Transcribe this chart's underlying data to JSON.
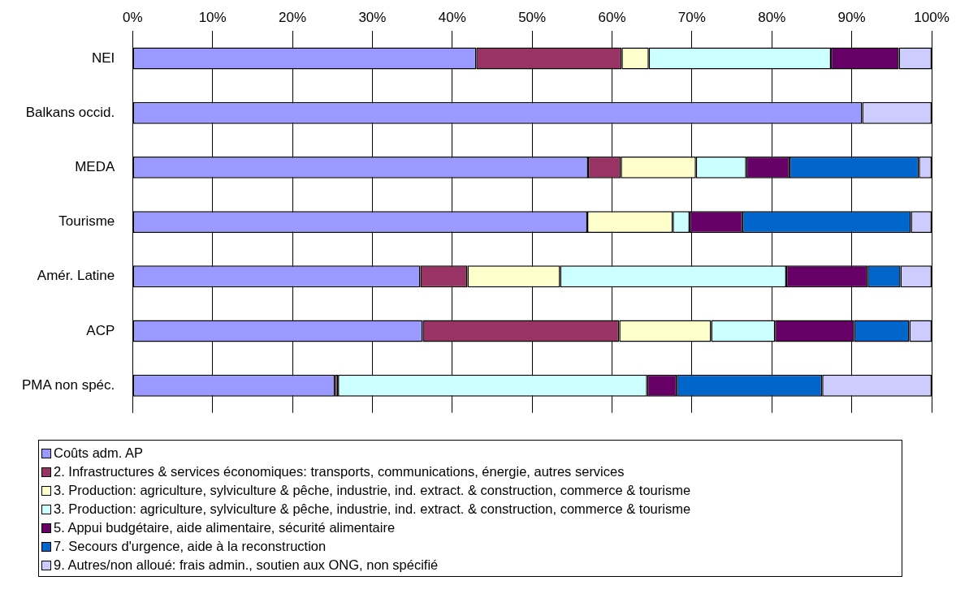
{
  "chart_data": {
    "type": "bar",
    "orientation": "horizontal",
    "stacked": true,
    "grid": "x",
    "legend": "bottom",
    "categories": [
      "NEI",
      "Balkans occid.",
      "MEDA",
      "Tourisme",
      "Amér. Latine",
      "ACP",
      "PMA non spéc."
    ],
    "xlim": [
      0,
      100
    ],
    "xticks": [
      {
        "value": 0,
        "label": "0%"
      },
      {
        "value": 10,
        "label": "10%"
      },
      {
        "value": 20,
        "label": "20%"
      },
      {
        "value": 30,
        "label": "30%"
      },
      {
        "value": 40,
        "label": "40%"
      },
      {
        "value": 50,
        "label": "50%"
      },
      {
        "value": 60,
        "label": "60%"
      },
      {
        "value": 70,
        "label": "70%"
      },
      {
        "value": 80,
        "label": "80%"
      },
      {
        "value": 90,
        "label": "90%"
      },
      {
        "value": 100,
        "label": "100%"
      }
    ],
    "series": [
      {
        "name": "Coûts adm. AP",
        "color": "#9999ff",
        "values": [
          43.0,
          91.3,
          57.0,
          56.9,
          36.0,
          36.3,
          25.3
        ]
      },
      {
        "name": "2. Infrastructures & services économiques: transports, communications, énergie, autres services",
        "color": "#993366",
        "values": [
          18.2,
          0,
          4.1,
          0,
          5.9,
          24.6,
          0.4
        ]
      },
      {
        "name": "3. Production: agriculture, sylviculture & pêche, industrie, ind. extract. & construction, commerce & tourisme",
        "color": "#ffffcc",
        "values": [
          3.4,
          0,
          9.4,
          10.7,
          11.6,
          11.5,
          0
        ]
      },
      {
        "name": "3. Production: agriculture, sylviculture & pêche, industrie, ind. extract. & construction, commerce & tourisme",
        "color": "#ccffff",
        "values": [
          22.8,
          0,
          6.3,
          2.1,
          28.3,
          8.0,
          38.7
        ]
      },
      {
        "name": "5. Appui budgétaire, aide alimentaire, sécurité alimentaire",
        "color": "#660066",
        "values": [
          8.5,
          0,
          5.4,
          6.6,
          10.2,
          9.9,
          3.7
        ]
      },
      {
        "name": "7. Secours d'urgence, aide à la reconstruction",
        "color": "#0066cc",
        "values": [
          0,
          0,
          16.2,
          21.1,
          4.1,
          6.9,
          18.2
        ]
      },
      {
        "name": "9. Autres/non alloué: frais admin., soutien aux ONG, non spécifié",
        "color": "#ccccff",
        "values": [
          4.1,
          8.7,
          1.6,
          2.6,
          3.9,
          2.8,
          13.7
        ]
      }
    ]
  }
}
